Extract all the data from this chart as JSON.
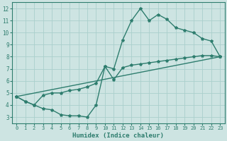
{
  "line1_x": [
    0,
    1,
    2,
    3,
    4,
    5,
    6,
    7,
    8,
    9,
    10,
    11,
    12,
    13,
    14,
    15,
    16,
    17,
    18,
    19,
    20,
    21,
    22,
    23
  ],
  "line1_y": [
    4.7,
    4.3,
    4.0,
    3.7,
    3.6,
    3.2,
    3.1,
    3.1,
    3.0,
    4.0,
    7.2,
    7.0,
    9.4,
    11.0,
    12.0,
    11.0,
    11.5,
    11.1,
    10.4,
    10.2,
    10.0,
    9.5,
    9.3,
    8.0
  ],
  "line2_x": [
    0,
    1,
    2,
    3,
    4,
    5,
    6,
    7,
    8,
    9,
    10,
    11,
    12,
    13,
    14,
    15,
    16,
    17,
    18,
    19,
    20,
    21,
    22,
    23
  ],
  "line2_y": [
    4.7,
    4.3,
    4.0,
    4.8,
    5.0,
    5.0,
    5.2,
    5.3,
    5.5,
    5.8,
    7.2,
    6.1,
    7.1,
    7.3,
    7.4,
    7.5,
    7.6,
    7.7,
    7.8,
    7.9,
    8.0,
    8.1,
    8.1,
    8.0
  ],
  "line3_x": [
    0,
    23
  ],
  "line3_y": [
    4.7,
    8.0
  ],
  "color": "#2e7d6e",
  "bg_color": "#cde4e2",
  "grid_color": "#aacfcc",
  "xlabel": "Humidex (Indice chaleur)",
  "xlim": [
    -0.5,
    23.5
  ],
  "ylim": [
    2.5,
    12.5
  ],
  "xticks": [
    0,
    1,
    2,
    3,
    4,
    5,
    6,
    7,
    8,
    9,
    10,
    11,
    12,
    13,
    14,
    15,
    16,
    17,
    18,
    19,
    20,
    21,
    22,
    23
  ],
  "yticks": [
    3,
    4,
    5,
    6,
    7,
    8,
    9,
    10,
    11,
    12
  ],
  "marker": "*",
  "markersize": 3,
  "linewidth": 1.0
}
